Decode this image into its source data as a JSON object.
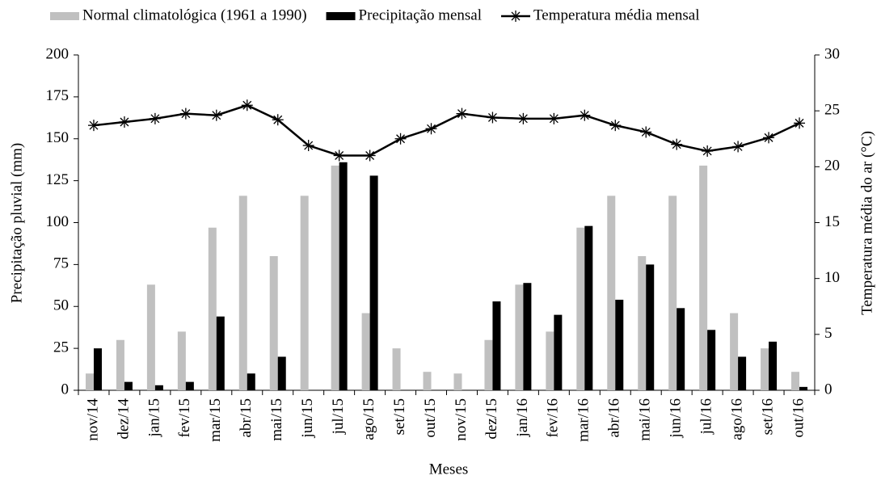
{
  "chart_data": {
    "type": "bar",
    "xlabel": "Meses",
    "ylabel": "Precipitação  pluvial  (mm)",
    "y2label": "Temperatura  média  do ar (°C)",
    "categories": [
      "nov/14",
      "dez/14",
      "jan/15",
      "fev/15",
      "mar/15",
      "abr/15",
      "mai/15",
      "jun/15",
      "jul/15",
      "ago/15",
      "set/15",
      "out/15",
      "nov/15",
      "dez/15",
      "jan/16",
      "fev/16",
      "mar/16",
      "abr/16",
      "mai/16",
      "jun/16",
      "jul/16",
      "ago/16",
      "set/16",
      "out/16"
    ],
    "series": [
      {
        "name": "Normal climatológica (1961 a 1990)",
        "color": "#c0c0c0",
        "values": [
          10,
          30,
          63,
          35,
          97,
          116,
          80,
          116,
          134,
          46,
          25,
          11,
          10,
          30,
          63,
          35,
          97,
          116,
          80,
          116,
          134,
          46,
          25,
          11
        ]
      },
      {
        "name": "Precipitação mensal",
        "color": "#000000",
        "values": [
          25,
          5,
          3,
          5,
          44,
          10,
          20,
          0,
          136,
          128,
          0,
          0,
          0,
          53,
          64,
          45,
          98,
          54,
          75,
          49,
          36,
          20,
          29,
          2
        ]
      },
      {
        "name": "Temperatura média mensal",
        "color": "#000000",
        "type": "line",
        "axis": "y2",
        "values": [
          23.7,
          24,
          24.3,
          24.75,
          24.6,
          25.5,
          24.2,
          21.9,
          21,
          21,
          22.5,
          23.4,
          24.75,
          24.4,
          24.3,
          24.3,
          24.6,
          23.7,
          23.1,
          22,
          21.4,
          21.8,
          22.6,
          23.9
        ]
      }
    ],
    "ylim": [
      0,
      200
    ],
    "yticks": [
      0,
      25,
      50,
      75,
      100,
      125,
      150,
      175,
      200
    ],
    "y2lim": [
      0,
      30
    ],
    "y2ticks": [
      0,
      5,
      10,
      15,
      20,
      25,
      30
    ]
  }
}
